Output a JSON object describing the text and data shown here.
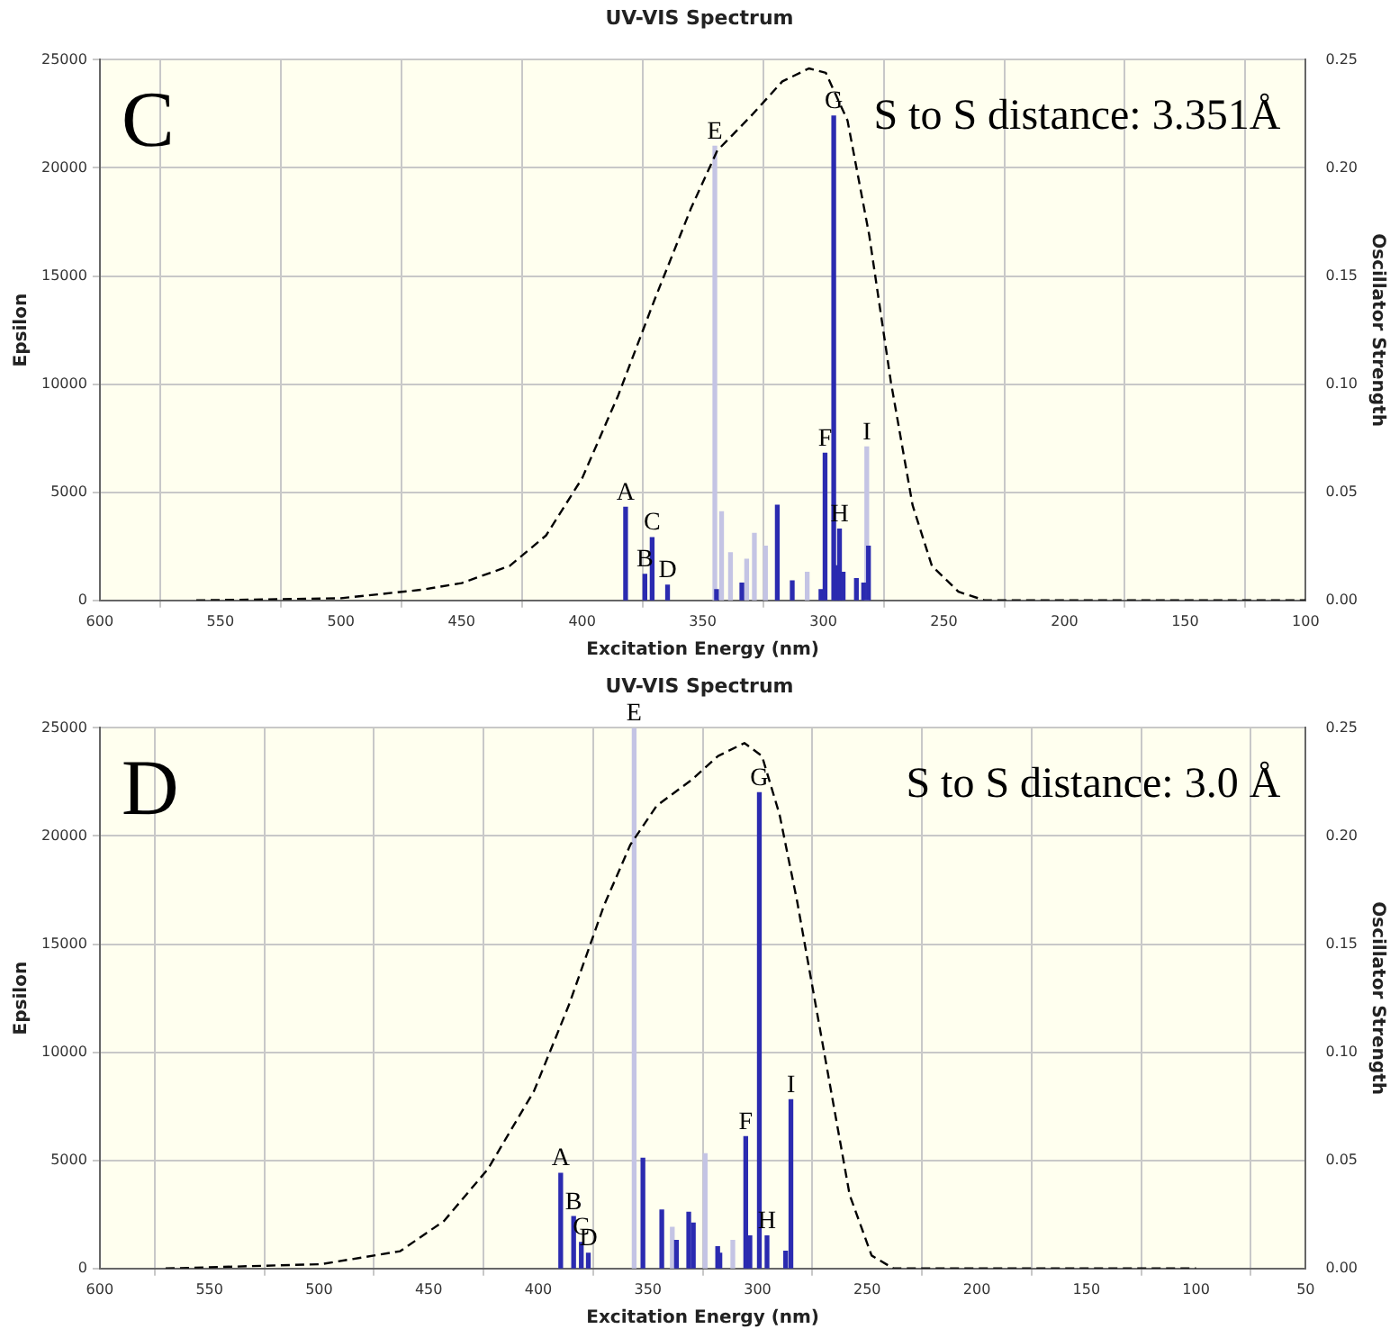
{
  "chart_data": [
    {
      "type": "line",
      "title": "UV-VIS Spectrum",
      "xlabel": "Excitation Energy (nm)",
      "ylabel": "Epsilon",
      "y2label": "Oscillator Strength",
      "grid": true,
      "xlim": [
        600,
        100
      ],
      "xticks": [
        600,
        550,
        500,
        450,
        400,
        350,
        300,
        250,
        200,
        150,
        100
      ],
      "ylim": [
        0,
        25000
      ],
      "yticks": [
        0,
        5000,
        10000,
        15000,
        20000,
        25000
      ],
      "y2lim": [
        0,
        0.25
      ],
      "y2ticks": [
        {
          "value": 0,
          "label": "0.00"
        },
        {
          "value": 0.05,
          "label": "0.05"
        },
        {
          "value": 0.1,
          "label": "0.10"
        },
        {
          "value": 0.15,
          "label": "0.15"
        },
        {
          "value": 0.2,
          "label": "0.20"
        },
        {
          "value": 0.25,
          "label": "0.25"
        }
      ],
      "series": [
        {
          "color": "#000000",
          "line_style": "dashed",
          "x": [
            560,
            500,
            466,
            450,
            430,
            415,
            400,
            385,
            370,
            355,
            344,
            330,
            317,
            306,
            299,
            290,
            281,
            272,
            263,
            255,
            244,
            233,
            200,
            150,
            100
          ],
          "values": [
            0,
            100,
            500,
            800,
            1600,
            3000,
            5650,
            9500,
            13900,
            18100,
            20800,
            22400,
            24000,
            24600,
            24400,
            22200,
            16900,
            10100,
            4400,
            1600,
            400,
            0,
            0,
            0,
            0
          ]
        },
        {
          "type": "bar",
          "axis": "y2",
          "color": "#2b2bb0",
          "x": [
            382,
            374,
            371,
            364.6,
            344.3,
            333.8,
            319.1,
            312.9,
            301,
            299.3,
            295.7,
            294.4,
            293.3,
            291.8,
            286.3,
            283.3,
            281.3
          ],
          "values": [
            0.043,
            0.012,
            0.029,
            0.007,
            0.005,
            0.008,
            0.044,
            0.009,
            0.005,
            0.068,
            0.224,
            0.016,
            0.033,
            0.013,
            0.01,
            0.008,
            0.025
          ]
        },
        {
          "type": "bar",
          "axis": "y2",
          "color": "#c4c4e4",
          "x": [
            345,
            342.2,
            338.5,
            331.8,
            328.6,
            324,
            306.7,
            282
          ],
          "values": [
            0.21,
            0.041,
            0.022,
            0.019,
            0.031,
            0.025,
            0.013,
            0.071
          ]
        }
      ],
      "annotations": [
        "C",
        "S to S distance: 3.351Å",
        {
          "text": "A",
          "x": 382,
          "y": 4300
        },
        {
          "text": "B",
          "x": 374,
          "y": 1200
        },
        {
          "text": "C",
          "x": 371,
          "y": 2900
        },
        {
          "text": "D",
          "x": 364.6,
          "y": 700
        },
        {
          "text": "E",
          "x": 345,
          "y": 21000
        },
        {
          "text": "F",
          "x": 299.3,
          "y": 6800
        },
        {
          "text": "G",
          "x": 295.7,
          "y": 22400
        },
        {
          "text": "H",
          "x": 293.3,
          "y": 3300
        },
        {
          "text": "I",
          "x": 282,
          "y": 7100
        }
      ]
    },
    {
      "type": "line",
      "title": "UV-VIS Spectrum",
      "xlabel": "Excitation Energy (nm)",
      "ylabel": "Epsilon",
      "y2label": "Oscillator Strength",
      "grid": true,
      "xlim": [
        600,
        50
      ],
      "xticks": [
        600,
        550,
        500,
        450,
        400,
        350,
        300,
        250,
        200,
        150,
        100,
        50
      ],
      "ylim": [
        0,
        25000
      ],
      "yticks": [
        0,
        5000,
        10000,
        15000,
        20000,
        25000
      ],
      "y2lim": [
        0,
        0.25
      ],
      "y2ticks": [
        {
          "value": 0,
          "label": "0.00"
        },
        {
          "value": 0.05,
          "label": "0.05"
        },
        {
          "value": 0.1,
          "label": "0.10"
        },
        {
          "value": 0.15,
          "label": "0.15"
        },
        {
          "value": 0.2,
          "label": "0.20"
        },
        {
          "value": 0.25,
          "label": "0.25"
        }
      ],
      "series": [
        {
          "color": "#000000",
          "line_style": "dashed",
          "x": [
            570,
            499,
            463,
            443,
            423,
            402,
            386,
            370,
            358,
            346,
            330,
            318,
            306,
            298,
            290,
            282,
            270,
            258,
            248,
            238,
            200,
            150,
            100
          ],
          "values": [
            0,
            200,
            800,
            2200,
            4600,
            8200,
            12200,
            16800,
            19600,
            21400,
            22600,
            23700,
            24300,
            23700,
            21000,
            17000,
            10200,
            3400,
            600,
            0,
            0,
            0,
            0
          ]
        },
        {
          "type": "bar",
          "axis": "y2",
          "color": "#2b2bb0",
          "x": [
            389.8,
            383.9,
            380.4,
            377.2,
            352.3,
            343.7,
            337,
            331.4,
            329.3,
            318.2,
            317.2,
            305.4,
            303.5,
            299.2,
            295.7,
            287.2,
            286.2,
            284.8
          ],
          "values": [
            0.044,
            0.024,
            0.012,
            0.007,
            0.051,
            0.027,
            0.013,
            0.026,
            0.021,
            0.01,
            0.007,
            0.061,
            0.015,
            0.22,
            0.015,
            0.008,
            null,
            0.078
          ]
        },
        {
          "type": "bar",
          "axis": "y2",
          "color": "#c4c4e4",
          "x": [
            356.3,
            338.9,
            323.9,
            311.3
          ],
          "values": [
            0.25,
            0.019,
            0.053,
            0.013
          ]
        }
      ],
      "annotations": [
        "D",
        "S to S distance: 3.0 Å",
        {
          "text": "A",
          "x": 389.8,
          "y": 4400
        },
        {
          "text": "B",
          "x": 383.9,
          "y": 2400
        },
        {
          "text": "C",
          "x": 380.4,
          "y": 1200
        },
        {
          "text": "D",
          "x": 377.2,
          "y": 700
        },
        {
          "text": "E",
          "x": 356.3,
          "y": 25000
        },
        {
          "text": "F",
          "x": 305.4,
          "y": 6100
        },
        {
          "text": "G",
          "x": 299.2,
          "y": 22000
        },
        {
          "text": "H",
          "x": 295.7,
          "y": 1500
        },
        {
          "text": "I",
          "x": 284.8,
          "y": 7800
        }
      ]
    }
  ]
}
